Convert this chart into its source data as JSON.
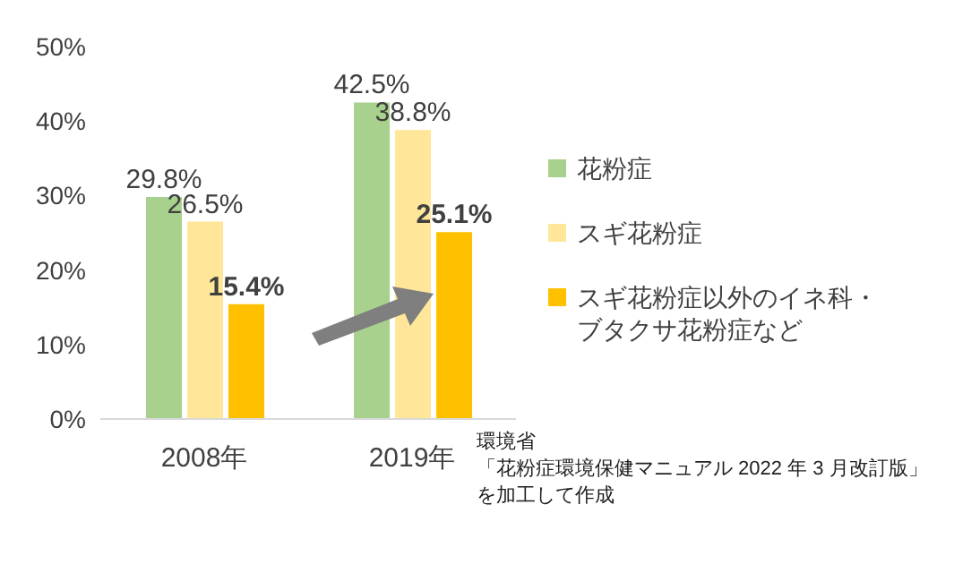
{
  "chart_data": {
    "type": "bar",
    "categories": [
      "2008年",
      "2019年"
    ],
    "series": [
      {
        "name": "花粉症",
        "color": "#a9d18e",
        "values": [
          29.8,
          42.5
        ],
        "value_labels": [
          "29.8%",
          "42.5%"
        ]
      },
      {
        "name": "スギ花粉症",
        "color": "#ffe699",
        "values": [
          26.5,
          38.8
        ],
        "value_labels": [
          "26.5%",
          "38.8%"
        ]
      },
      {
        "name": "スギ花粉症以外のイネ科・ブタクサ花粉症など",
        "color": "#ffc000",
        "values": [
          15.4,
          25.1
        ],
        "value_labels": [
          "15.4%",
          "25.1%"
        ]
      }
    ],
    "ylim": [
      0,
      50
    ],
    "yticks": [
      {
        "value": 0,
        "label": "0%"
      },
      {
        "value": 10,
        "label": "10%"
      },
      {
        "value": 20,
        "label": "20%"
      },
      {
        "value": 30,
        "label": "30%"
      },
      {
        "value": 40,
        "label": "40%"
      },
      {
        "value": 50,
        "label": "50%"
      }
    ],
    "grid": false,
    "legend": "right",
    "annotations": [
      "環境省",
      "「花粉症環境保健マニュアル 2022 年 3 月改訂版」",
      "を加工して作成"
    ]
  }
}
